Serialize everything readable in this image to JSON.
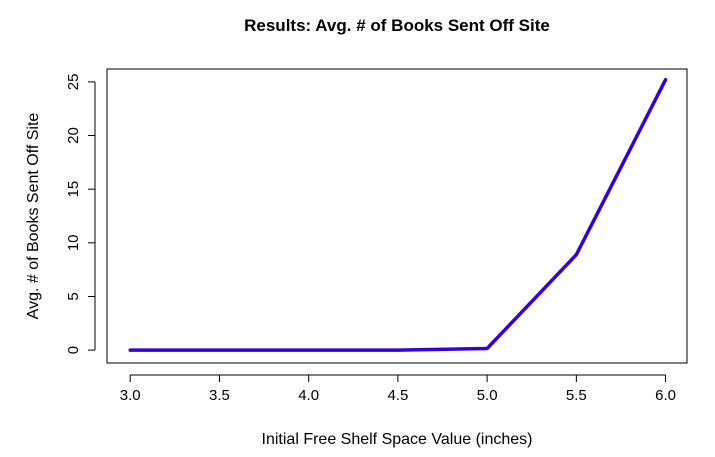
{
  "chart_data": {
    "type": "line",
    "title": "Results: Avg. # of Books Sent Off Site",
    "xlabel": "Initial Free Shelf Space Value (inches)",
    "ylabel": "Avg. # of Books Sent Off Site",
    "x": [
      3.0,
      3.5,
      4.0,
      4.5,
      5.0,
      5.5,
      6.0
    ],
    "xticks": [
      "3.0",
      "3.5",
      "4.0",
      "4.5",
      "5.0",
      "5.5",
      "6.0"
    ],
    "yticks": [
      "0",
      "5",
      "10",
      "15",
      "20",
      "25"
    ],
    "xlim": [
      2.87,
      6.12
    ],
    "ylim": [
      -1.2,
      26.2
    ],
    "series": [
      {
        "values": [
          0,
          0,
          0,
          0,
          0.15,
          8.9,
          25.2
        ],
        "color": "#3300dd"
      }
    ],
    "grid": false,
    "legend": "none"
  }
}
